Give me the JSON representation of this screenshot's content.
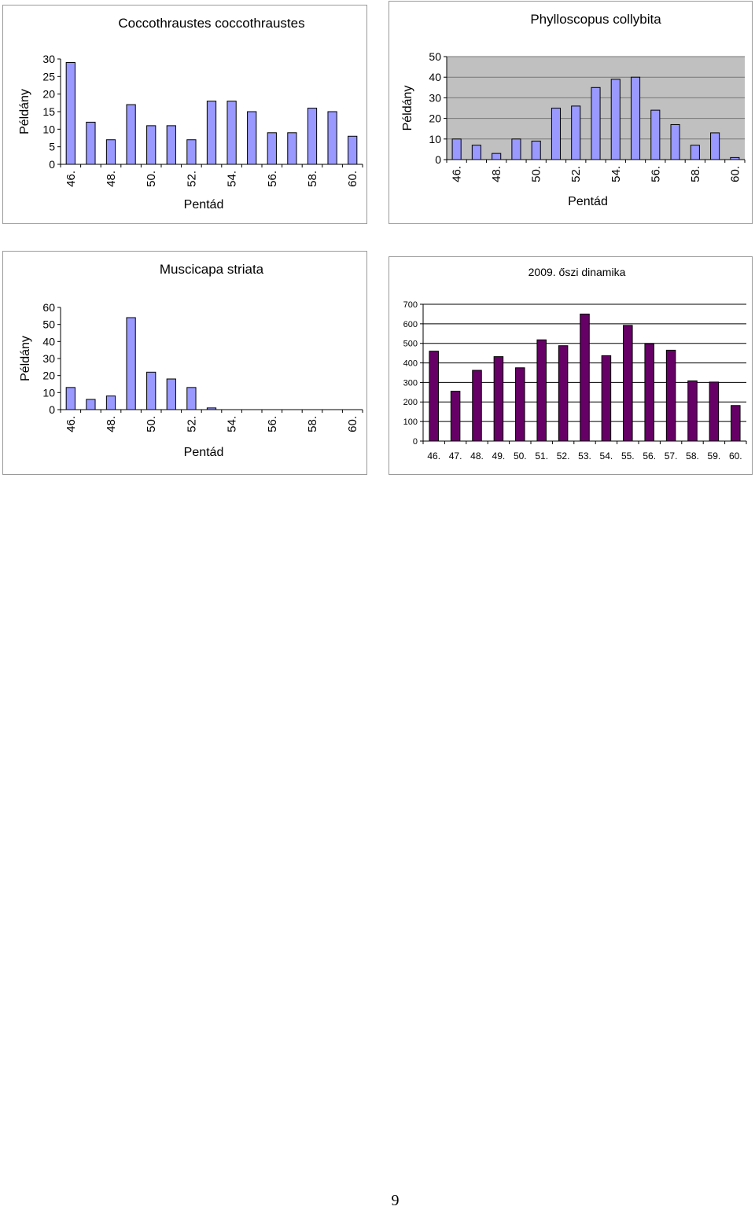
{
  "page_number": "9",
  "chart_data": [
    {
      "type": "bar",
      "title": "Coccothraustes coccothraustes",
      "xlabel": "Pentád",
      "ylabel": "Példány",
      "categories": [
        "46.",
        "47.",
        "48.",
        "49.",
        "50.",
        "51.",
        "52.",
        "53.",
        "54.",
        "55.",
        "56.",
        "57.",
        "58.",
        "59.",
        "60."
      ],
      "tick_labels": [
        "46.",
        "48.",
        "50.",
        "52.",
        "54.",
        "56.",
        "58.",
        "60."
      ],
      "values": [
        29,
        12,
        7,
        17,
        11,
        11,
        7,
        18,
        18,
        15,
        9,
        9,
        16,
        15,
        8
      ],
      "ylim": [
        0,
        30
      ],
      "yticks": [
        0,
        5,
        10,
        15,
        20,
        25,
        30
      ],
      "grid": false,
      "bar_color": "#9999ff"
    },
    {
      "type": "bar",
      "title": "Phylloscopus collybita",
      "xlabel": "Pentád",
      "ylabel": "Példány",
      "categories": [
        "46.",
        "47.",
        "48.",
        "49.",
        "50.",
        "51.",
        "52.",
        "53.",
        "54.",
        "55.",
        "56.",
        "57.",
        "58.",
        "59.",
        "60."
      ],
      "tick_labels": [
        "46.",
        "48.",
        "50.",
        "52.",
        "54.",
        "56.",
        "58.",
        "60."
      ],
      "values": [
        10,
        7,
        3,
        10,
        9,
        25,
        26,
        35,
        39,
        40,
        24,
        17,
        7,
        13,
        1
      ],
      "ylim": [
        0,
        50
      ],
      "yticks": [
        0,
        10,
        20,
        30,
        40,
        50
      ],
      "grid": true,
      "plot_bg": "#c0c0c0",
      "bar_color": "#9999ff"
    },
    {
      "type": "bar",
      "title": "Muscicapa striata",
      "xlabel": "Pentád",
      "ylabel": "Példány",
      "categories": [
        "46.",
        "47.",
        "48.",
        "49.",
        "50.",
        "51.",
        "52.",
        "53.",
        "54.",
        "55.",
        "56.",
        "57.",
        "58.",
        "59.",
        "60."
      ],
      "tick_labels": [
        "46.",
        "48.",
        "50.",
        "52.",
        "54.",
        "56.",
        "58.",
        "60."
      ],
      "values": [
        13,
        6,
        8,
        54,
        22,
        18,
        13,
        1,
        0,
        0,
        0,
        0,
        0,
        0,
        0
      ],
      "ylim": [
        0,
        60
      ],
      "yticks": [
        0,
        10,
        20,
        30,
        40,
        50,
        60
      ],
      "grid": false,
      "bar_color": "#9999ff"
    },
    {
      "type": "bar",
      "title": "2009. őszi dinamika",
      "xlabel": "",
      "ylabel": "",
      "categories": [
        "46.",
        "47.",
        "48.",
        "49.",
        "50.",
        "51.",
        "52.",
        "53.",
        "54.",
        "55.",
        "56.",
        "57.",
        "58.",
        "59.",
        "60."
      ],
      "tick_labels": [
        "46.",
        "47.",
        "48.",
        "49.",
        "50.",
        "51.",
        "52.",
        "53.",
        "54.",
        "55.",
        "56.",
        "57.",
        "58.",
        "59.",
        "60."
      ],
      "values": [
        460,
        255,
        362,
        432,
        375,
        518,
        488,
        650,
        437,
        592,
        498,
        465,
        308,
        302,
        182
      ],
      "ylim": [
        0,
        700
      ],
      "yticks": [
        0,
        100,
        200,
        300,
        400,
        500,
        600,
        700
      ],
      "grid": true,
      "bar_color": "#660066"
    }
  ]
}
